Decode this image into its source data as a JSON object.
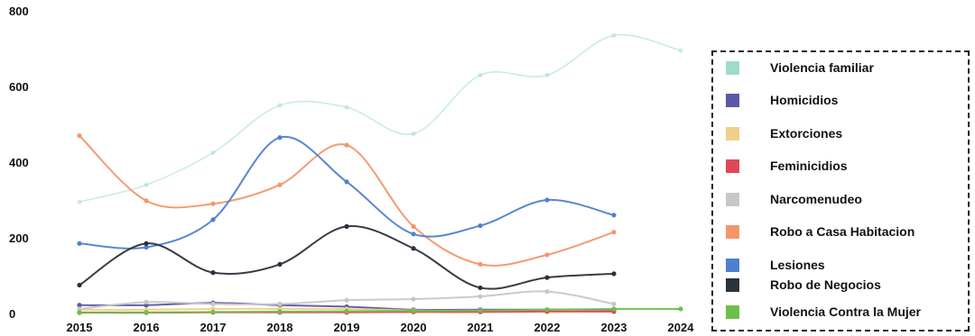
{
  "chart_data": {
    "type": "line",
    "title": "",
    "xlabel": "",
    "ylabel": "",
    "ylim": [
      0,
      800
    ],
    "yticks": [
      "0",
      "200",
      "400",
      "600",
      "800"
    ],
    "categories": [
      "2015",
      "2016",
      "2017",
      "2018",
      "2019",
      "2020",
      "2021",
      "2022",
      "2023",
      "2024"
    ],
    "grid": false,
    "legend_position": "right",
    "series": [
      {
        "name": "Violencia familiar",
        "color": "#9fdcc8",
        "values": [
          295,
          340,
          425,
          550,
          545,
          475,
          630,
          630,
          735,
          695
        ]
      },
      {
        "name": "Homicidios",
        "color": "#5b58a8",
        "values": [
          22,
          22,
          28,
          22,
          18,
          10,
          10,
          10,
          10,
          null
        ]
      },
      {
        "name": "Extorciones",
        "color": "#f2cf86",
        "values": [
          10,
          10,
          12,
          12,
          12,
          8,
          6,
          6,
          5,
          null
        ]
      },
      {
        "name": "Feminicidios",
        "color": "#e0485a",
        "values": [
          2,
          2,
          3,
          3,
          3,
          4,
          4,
          5,
          5,
          null
        ]
      },
      {
        "name": "Narcomenudeo",
        "color": "#c7c7c7",
        "values": [
          12,
          30,
          25,
          25,
          35,
          38,
          45,
          58,
          25,
          null
        ]
      },
      {
        "name": "Robo a Casa Habitacion",
        "color": "#f4956a",
        "values": [
          470,
          298,
          290,
          340,
          445,
          230,
          130,
          155,
          215,
          null
        ]
      },
      {
        "name": "Lesiones",
        "color": "#4f7fd1",
        "values": [
          185,
          175,
          248,
          465,
          348,
          210,
          232,
          300,
          260,
          null
        ]
      },
      {
        "name": "Robo de Negocios",
        "color": "#2a323c",
        "values": [
          75,
          185,
          108,
          130,
          230,
          172,
          68,
          95,
          105,
          null
        ]
      },
      {
        "name": "Violencia Contra la Mujer",
        "color": "#6cc04a",
        "values": [
          3,
          3,
          4,
          5,
          6,
          7,
          8,
          10,
          12,
          12
        ]
      }
    ]
  }
}
